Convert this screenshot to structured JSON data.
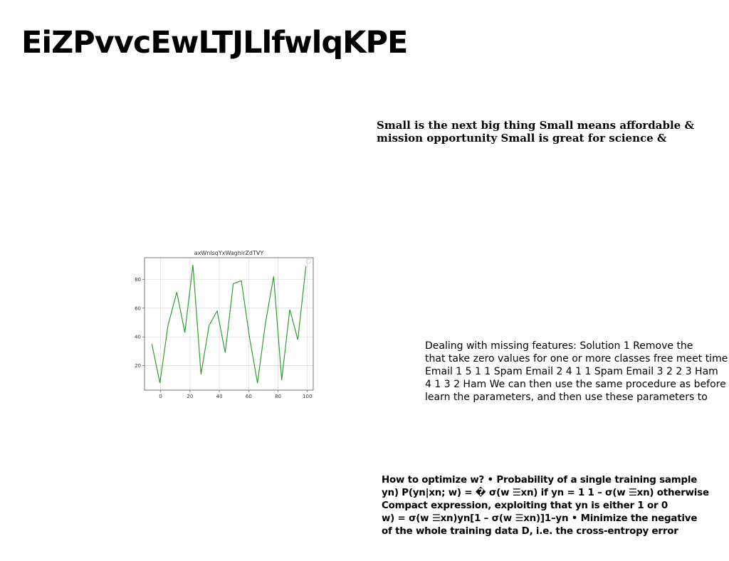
{
  "page": {
    "title": "EiZPvvcEwLTJLlfwlqKPE"
  },
  "paragraphs": {
    "p1": [
      "Small is the next big thing Small means affordable &",
      "mission opportunity Small is great for science &"
    ],
    "p2": [
      "Dealing with missing features: Solution 1 Remove the",
      "that take zero values for one or more classes free meet time",
      "Email 1 5 1 1 Spam Email 2 4 1 1 Spam Email 3 2 2 3 Ham",
      "4 1 3 2 Ham We can then use the same procedure as before",
      "learn the parameters, and then use these parameters to"
    ],
    "p3": [
      "How to optimize w? • Probability of a single training sample",
      "yn) P(yn|xn; w) = � σ(w ☰xn) if yn = 1 1 – σ(w ☰xn) otherwise",
      "Compact expression, exploiting that yn is either 1 or 0",
      "w) = σ(w ☰xn)yn[1 – σ(w ☰xn)]1–yn • Minimize the negative",
      "of the whole training data D, i.e. the cross-entropy error"
    ]
  },
  "chart_data": {
    "type": "line",
    "title": "axWnlsqYxWaghlrZdTVY",
    "xlabel": "",
    "ylabel": "",
    "x": [
      -6,
      -0.5,
      5,
      11,
      16.5,
      22,
      27.5,
      33,
      38.5,
      44,
      49.5,
      55,
      60.5,
      66,
      71.5,
      77,
      82.5,
      88,
      93.5,
      99
    ],
    "series": [
      {
        "values": [
          35,
          8,
          48,
          71,
          43,
          90,
          14,
          48,
          58,
          29,
          77,
          79,
          40,
          8,
          50,
          82,
          10,
          59,
          38,
          89
        ]
      }
    ],
    "xlim": [
      -11,
      104
    ],
    "ylim": [
      3,
      95
    ],
    "xticks": [
      0,
      20,
      40,
      60,
      80,
      100
    ],
    "yticks": [
      20,
      40,
      60,
      80
    ],
    "grid": true,
    "line_color": "#2ca02c"
  }
}
